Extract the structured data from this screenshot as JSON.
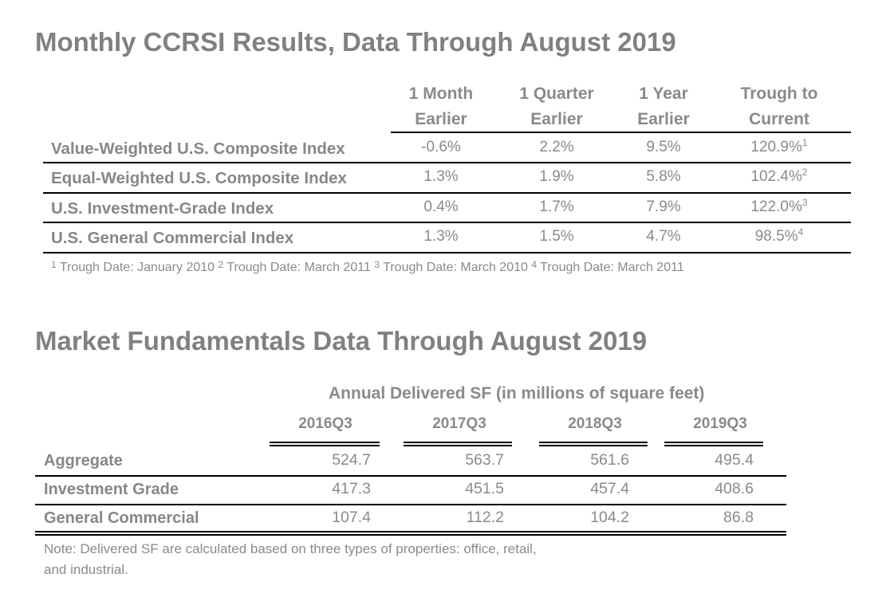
{
  "section1": {
    "title": "Monthly CCRSI Results, Data Through August 2019",
    "col_headers": [
      {
        "l1": "1 Month",
        "l2": "Earlier"
      },
      {
        "l1": "1 Quarter",
        "l2": "Earlier"
      },
      {
        "l1": "1 Year",
        "l2": "Earlier"
      },
      {
        "l1": "Trough to",
        "l2": "Current"
      }
    ],
    "rows": [
      {
        "label": "Value-Weighted U.S. Composite Index",
        "m1": "-0.6%",
        "q1": "2.2%",
        "y1": "9.5%",
        "trough": "120.9%",
        "sup": "1"
      },
      {
        "label": "Equal-Weighted U.S. Composite Index",
        "m1": "1.3%",
        "q1": "1.9%",
        "y1": "5.8%",
        "trough": "102.4%",
        "sup": "2"
      },
      {
        "label": "U.S. Investment-Grade Index",
        "m1": "0.4%",
        "q1": "1.7%",
        "y1": "7.9%",
        "trough": "122.0%",
        "sup": "3"
      },
      {
        "label": "U.S. General Commercial Index",
        "m1": "1.3%",
        "q1": "1.5%",
        "y1": "4.7%",
        "trough": "98.5%",
        "sup": "4"
      }
    ],
    "footnotes": [
      {
        "sup": "1",
        "text": " Trough Date: January 2010 "
      },
      {
        "sup": "2",
        "text": " Trough Date: March 2011 "
      },
      {
        "sup": "3",
        "text": " Trough Date: March 2010 "
      },
      {
        "sup": "4",
        "text": " Trough Date: March 2011"
      }
    ]
  },
  "section2": {
    "title": "Market Fundamentals Data Through August 2019",
    "group_header": "Annual Delivered SF (in millions of square feet)",
    "columns": [
      "2016Q3",
      "2017Q3",
      "2018Q3",
      "2019Q3"
    ],
    "rows": [
      {
        "label": "Aggregate",
        "values": [
          "524.7",
          "563.7",
          "561.6",
          "495.4"
        ]
      },
      {
        "label": "Investment Grade",
        "values": [
          "417.3",
          "451.5",
          "457.4",
          "408.6"
        ]
      },
      {
        "label": "General Commercial",
        "values": [
          "107.4",
          "112.2",
          "104.2",
          "86.8"
        ]
      }
    ],
    "note_line1": "Note: Delivered SF are calculated based on three types of properties: office, retail,",
    "note_line2": "and industrial."
  }
}
